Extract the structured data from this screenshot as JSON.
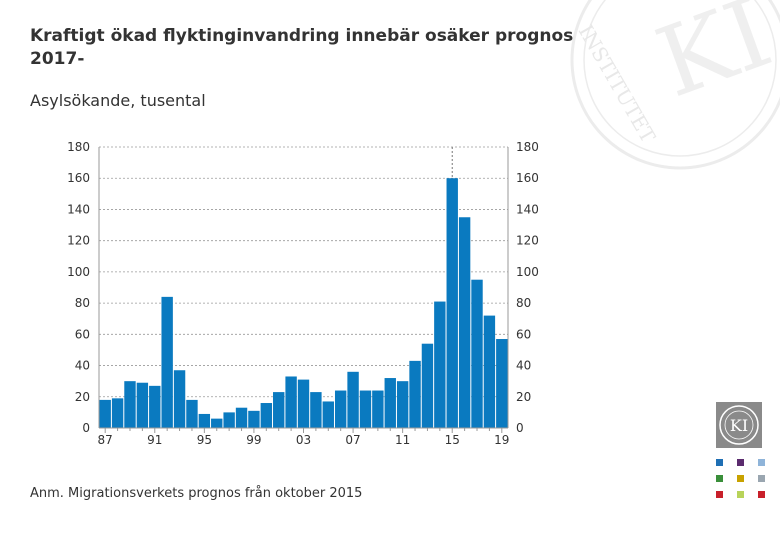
{
  "title": "Kraftigt ökad flyktinginvandring innebär osäker prognos 2017-",
  "subtitle": "Asylsökande, tusental",
  "note": "Anm. Migrationsverkets prognos från oktober 2015",
  "logo": {
    "text": "KI",
    "watermark_text": "INSTITUTET"
  },
  "colors": {
    "bar": "#0a7ac0",
    "grid": "#9a9a9a",
    "axis": "#999999",
    "marker": "#777777"
  },
  "palette": [
    "#1f6fb4",
    "#5b2b6e",
    "#8fb4d9",
    "#3a8f3a",
    "#c8a200",
    "#9aa6b0",
    "#c8202a",
    "#b8d35a",
    "#c8202a"
  ],
  "chart_data": {
    "type": "bar",
    "title": "Asylsökande, tusental",
    "xlabel": "",
    "ylabel": "",
    "categories": [
      "87",
      "88",
      "89",
      "90",
      "91",
      "92",
      "93",
      "94",
      "95",
      "96",
      "97",
      "98",
      "99",
      "00",
      "01",
      "02",
      "03",
      "04",
      "05",
      "06",
      "07",
      "08",
      "09",
      "10",
      "11",
      "12",
      "13",
      "14",
      "15",
      "16",
      "17",
      "18",
      "19"
    ],
    "x_tick_labels": [
      "87",
      "91",
      "95",
      "99",
      "03",
      "07",
      "11",
      "15",
      "19"
    ],
    "values": [
      18,
      19,
      30,
      29,
      27,
      84,
      37,
      18,
      9,
      6,
      10,
      13,
      11,
      16,
      23,
      33,
      31,
      23,
      17,
      24,
      36,
      24,
      24,
      32,
      30,
      43,
      54,
      81,
      160,
      135,
      95,
      72,
      57
    ],
    "ylim": [
      0,
      180
    ],
    "yticks": [
      0,
      20,
      40,
      60,
      80,
      100,
      120,
      140,
      160,
      180
    ],
    "grid": true,
    "forecast_marker_category": "15"
  }
}
